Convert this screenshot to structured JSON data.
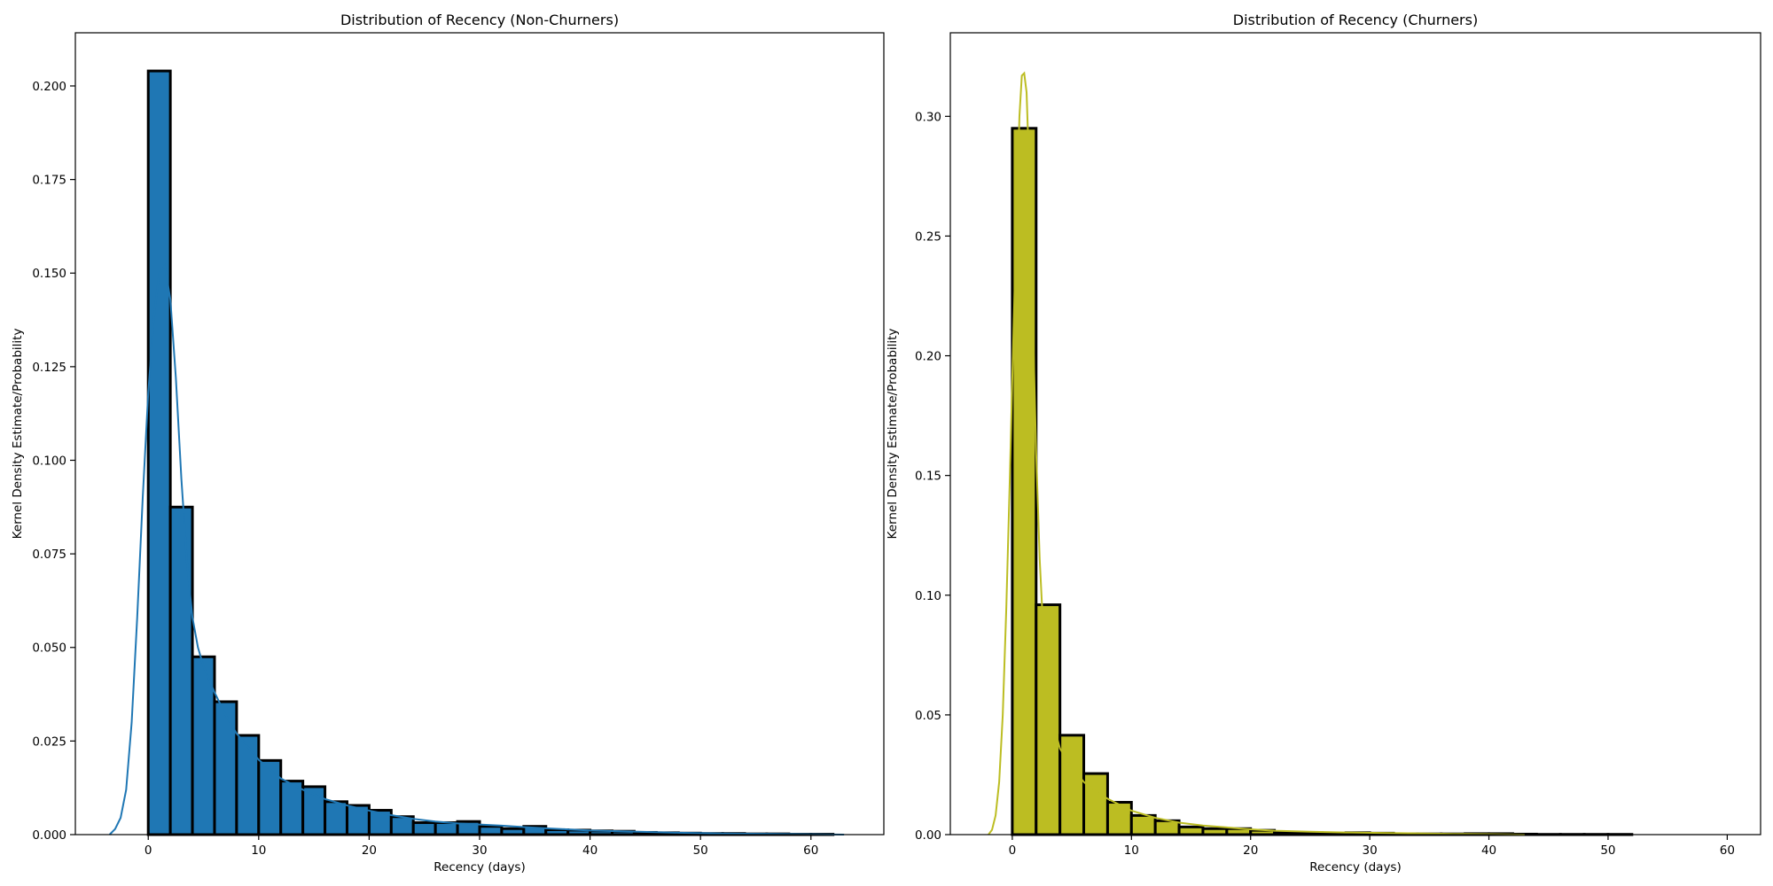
{
  "chart_data": [
    {
      "type": "bar",
      "title": "Distribution of Recency (Non-Churners)",
      "xlabel": "Recency (days)",
      "ylabel": "Kernel Density Estimate/Probability",
      "color": "#1f77b4",
      "edge_color": "#000000",
      "grid": false,
      "legend": "none",
      "xlim": [
        -6.6,
        66.6
      ],
      "ylim": [
        0,
        0.2142
      ],
      "xticks": [
        0,
        10,
        20,
        30,
        40,
        50,
        60
      ],
      "xtick_labels": [
        "0",
        "10",
        "20",
        "30",
        "40",
        "50",
        "60"
      ],
      "yticks": [
        0,
        0.025,
        0.05,
        0.075,
        0.1,
        0.125,
        0.15,
        0.175,
        0.2
      ],
      "ytick_labels": [
        "0.000",
        "0.025",
        "0.050",
        "0.075",
        "0.100",
        "0.125",
        "0.150",
        "0.175",
        "0.200"
      ],
      "bin_edges": [
        0,
        2,
        4,
        6,
        8,
        10,
        12,
        14,
        16,
        18,
        20,
        22,
        24,
        26,
        28,
        30,
        32,
        34,
        36,
        38,
        40,
        42,
        44,
        46,
        48,
        50,
        52,
        54,
        56,
        58,
        60,
        62
      ],
      "values": [
        0.204,
        0.0875,
        0.0475,
        0.0355,
        0.0265,
        0.0198,
        0.0143,
        0.0128,
        0.0088,
        0.0078,
        0.0065,
        0.0048,
        0.0032,
        0.0032,
        0.0035,
        0.0022,
        0.0016,
        0.0022,
        0.0013,
        0.0012,
        0.001,
        0.0009,
        0.0006,
        0.0005,
        0.0004,
        0.0003,
        0.0003,
        0.0002,
        0.0002,
        0.0001,
        0.0001
      ],
      "kde_x": [
        -3.5,
        -3.0,
        -2.5,
        -2.0,
        -1.5,
        -1.0,
        -0.5,
        0.0,
        0.5,
        1.0,
        1.5,
        2.0,
        2.5,
        3.0,
        3.5,
        4.0,
        4.5,
        5.0,
        6.0,
        7.0,
        8.0,
        10.0,
        12.0,
        14.0,
        16.0,
        18.0,
        20.0,
        22.0,
        24.0,
        26.0,
        28.0,
        30.0,
        32.0,
        34.0,
        36.0,
        38.0,
        40.0,
        44.0,
        48.0,
        52.0,
        56.0,
        60.0,
        63.0
      ],
      "kde_y": [
        0.0,
        0.0015,
        0.0045,
        0.012,
        0.03,
        0.058,
        0.09,
        0.118,
        0.138,
        0.15,
        0.152,
        0.143,
        0.122,
        0.095,
        0.073,
        0.058,
        0.05,
        0.045,
        0.038,
        0.032,
        0.027,
        0.02,
        0.015,
        0.012,
        0.0095,
        0.0078,
        0.0064,
        0.0052,
        0.0042,
        0.0035,
        0.003,
        0.0027,
        0.0024,
        0.002,
        0.0017,
        0.0014,
        0.0011,
        0.0008,
        0.0005,
        0.0003,
        0.0002,
        0.0001,
        0.0
      ]
    },
    {
      "type": "bar",
      "title": "Distribution of Recency (Churners)",
      "xlabel": "Recency (days)",
      "ylabel": "Kernel Density Estimate/Probability",
      "color": "#bcbd22",
      "edge_color": "#000000",
      "grid": false,
      "legend": "none",
      "xlim": [
        -5.2,
        62.8
      ],
      "ylim": [
        0,
        0.3349
      ],
      "xticks": [
        0,
        10,
        20,
        30,
        40,
        50,
        60
      ],
      "xtick_labels": [
        "0",
        "10",
        "20",
        "30",
        "40",
        "50",
        "60"
      ],
      "yticks": [
        0,
        0.05,
        0.1,
        0.15,
        0.2,
        0.25,
        0.3
      ],
      "ytick_labels": [
        "0.00",
        "0.05",
        "0.10",
        "0.15",
        "0.20",
        "0.25",
        "0.30"
      ],
      "bin_edges": [
        0,
        2,
        4,
        6,
        8,
        10,
        12,
        14,
        16,
        18,
        20,
        22,
        24,
        26,
        28,
        30,
        32,
        34,
        36,
        38,
        40,
        42,
        44,
        46,
        48,
        50,
        52,
        54,
        56,
        58,
        60
      ],
      "values": [
        0.295,
        0.096,
        0.0415,
        0.0255,
        0.0135,
        0.008,
        0.0058,
        0.0032,
        0.0025,
        0.0025,
        0.0018,
        0.0008,
        0.0008,
        0.0006,
        0.0008,
        0.0006,
        0.0003,
        0.0003,
        0.0003,
        0.0004,
        0.0004,
        0.0002,
        0.0001,
        0.0001,
        0.0001,
        0.0001,
        0.0,
        0.0,
        0.0,
        0.0
      ],
      "kde_x": [
        -2.0,
        -1.7,
        -1.4,
        -1.1,
        -0.8,
        -0.5,
        -0.2,
        0.1,
        0.4,
        0.6,
        0.8,
        1.0,
        1.2,
        1.4,
        1.6,
        1.8,
        2.0,
        2.3,
        2.6,
        3.0,
        3.5,
        4.0,
        5.0,
        6.0,
        7.0,
        8.0,
        10.0,
        12.0,
        14.0,
        16.0,
        18.0,
        20.0,
        22.0,
        25.0,
        28.0,
        31.0,
        34.0,
        37.0,
        40.0,
        43.0
      ],
      "kde_y": [
        0.0,
        0.002,
        0.008,
        0.022,
        0.05,
        0.095,
        0.15,
        0.21,
        0.265,
        0.3,
        0.317,
        0.318,
        0.31,
        0.28,
        0.24,
        0.2,
        0.16,
        0.115,
        0.085,
        0.06,
        0.045,
        0.036,
        0.028,
        0.022,
        0.018,
        0.015,
        0.01,
        0.007,
        0.005,
        0.0038,
        0.003,
        0.0022,
        0.0016,
        0.0012,
        0.0009,
        0.0007,
        0.0005,
        0.0003,
        0.0002,
        0.0
      ]
    }
  ]
}
